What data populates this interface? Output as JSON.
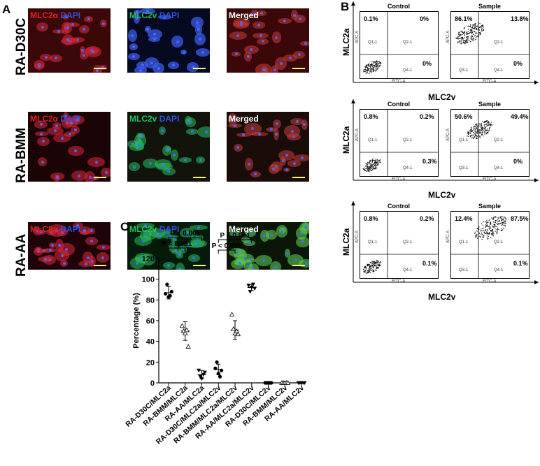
{
  "panel_a": {
    "letter": "A",
    "rows": [
      {
        "label": "RA-D30C"
      },
      {
        "label": "RA-BMM"
      },
      {
        "label": "RA-AA"
      }
    ],
    "channel_labels": {
      "mlc2a": "MLC2α",
      "mlc2v": "MLC2v",
      "dapi": "DAPI",
      "merged": "Merged"
    },
    "colors": {
      "red": "#e02020",
      "blue": "#3050e0",
      "green": "#20c060"
    }
  },
  "panel_b": {
    "letter": "B",
    "y_axis_label": "MLC2a",
    "x_axis_label": "MLC2v",
    "control_title": "Control",
    "sample_title": "Sample",
    "axis_x_name": "FITC-A",
    "axis_y_name": "APC-A",
    "quadrant_labels": [
      "Q1-1",
      "Q2-1",
      "Q3-1",
      "Q4-1"
    ],
    "rows": [
      {
        "control": {
          "q1": "0.1%",
          "q2": "0%",
          "q4": "0%"
        },
        "sample": {
          "q1": "86.1%",
          "q2": "13.8%",
          "q4": "0%"
        }
      },
      {
        "control": {
          "q1": "0.8%",
          "q2": "0.2%",
          "q4": "0.3%"
        },
        "sample": {
          "q1": "50.6%",
          "q2": "49.4%",
          "q4": "0%"
        }
      },
      {
        "control": {
          "q1": "0.8%",
          "q2": "0.2%",
          "q4": "0.1%"
        },
        "sample": {
          "q1": "12.4%",
          "q2": "87.5%",
          "q4": "0.1%"
        }
      }
    ]
  },
  "panel_c": {
    "letter": "C",
    "chart_data": {
      "type": "scatter",
      "ylabel": "Percentage (%)",
      "ylim": [
        0,
        120
      ],
      "yticks": [
        0,
        20,
        40,
        60,
        80,
        100,
        120
      ],
      "categories": [
        "RA-D30C/MLC2a",
        "RA-BMM/MLC2a",
        "RA-AA/MLC2a",
        "RA-D30C/MLC2a/MLC2v",
        "RA-BMM/MLC2a/MLC2v",
        "RA-AA/MLC2a/MLC2v",
        "RA-D30C/MLC2v",
        "RA-BMM/MLC2v",
        "RA-AA/MLC2v"
      ],
      "series": [
        {
          "category": "RA-D30C/MLC2a",
          "marker": "circle",
          "mean": 87,
          "sd": 6,
          "values": [
            86,
            95,
            83,
            84,
            88
          ]
        },
        {
          "category": "RA-BMM/MLC2a",
          "marker": "triangle",
          "mean": 50,
          "sd": 9,
          "values": [
            55,
            50,
            48,
            51,
            35
          ]
        },
        {
          "category": "RA-AA/MLC2a",
          "marker": "triangle-down",
          "mean": 8,
          "sd": 4,
          "values": [
            12,
            6,
            4,
            8,
            10
          ]
        },
        {
          "category": "RA-D30C/MLC2a/MLC2v",
          "marker": "circle",
          "mean": 13,
          "sd": 5,
          "values": [
            14,
            20,
            9,
            6,
            12
          ]
        },
        {
          "category": "RA-BMM/MLC2a/MLC2v",
          "marker": "triangle",
          "mean": 51,
          "sd": 9,
          "values": [
            66,
            52,
            48,
            50,
            47
          ]
        },
        {
          "category": "RA-AA/MLC2a/MLC2v",
          "marker": "triangle-down",
          "mean": 92,
          "sd": 3,
          "values": [
            94,
            88,
            92,
            95,
            91
          ]
        },
        {
          "category": "RA-D30C/MLC2v",
          "marker": "circle",
          "mean": 0,
          "sd": 0,
          "values": [
            0,
            0,
            0,
            0,
            0
          ]
        },
        {
          "category": "RA-BMM/MLC2v",
          "marker": "triangle",
          "mean": 0,
          "sd": 0,
          "values": [
            0,
            0,
            0,
            0,
            0
          ]
        },
        {
          "category": "RA-AA/MLC2v",
          "marker": "triangle-down",
          "mean": 0,
          "sd": 0,
          "values": [
            0,
            0,
            0,
            0,
            0
          ]
        }
      ],
      "annotations": [
        {
          "text": "P < 0.001",
          "from": 0,
          "to": 1
        },
        {
          "text": "P < 0.001",
          "from": 0,
          "to": 2
        },
        {
          "text": "P < 0.001",
          "from": 3,
          "to": 4
        },
        {
          "text": "P < 0.001",
          "from": 3,
          "to": 5
        }
      ]
    }
  }
}
